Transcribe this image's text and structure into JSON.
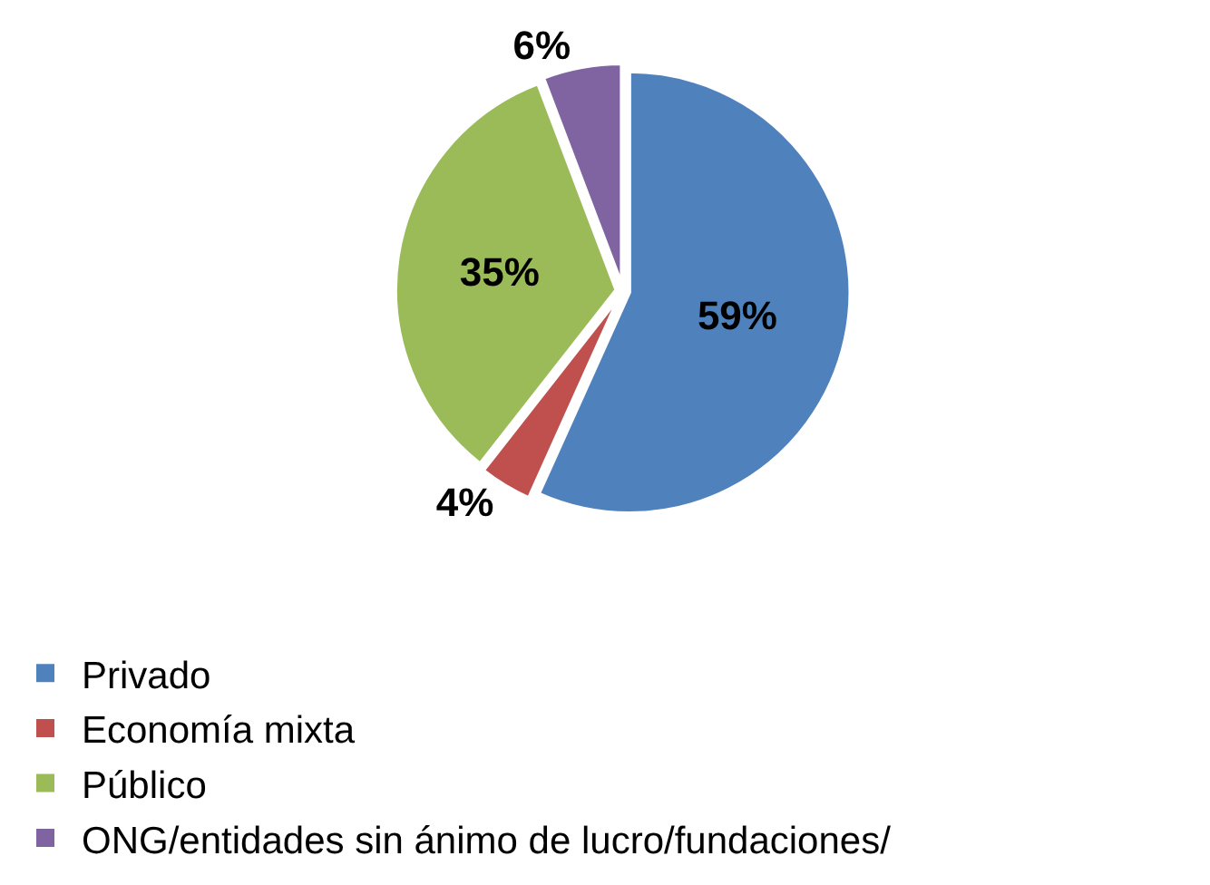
{
  "chart_data": {
    "type": "pie",
    "categories": [
      "Privado",
      "Economía mixta",
      "Público",
      "ONG/entidades sin ánimo de lucro/fundaciones/"
    ],
    "values": [
      59,
      4,
      35,
      6
    ],
    "value_labels": [
      "59%",
      "4%",
      "35%",
      "6%"
    ],
    "colors": [
      "#4f81bd",
      "#c0504d",
      "#9bbb59",
      "#8064a2"
    ],
    "legend": "bottom left"
  }
}
